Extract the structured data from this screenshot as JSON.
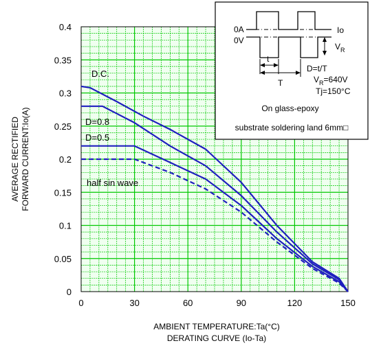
{
  "chart_data": {
    "type": "line",
    "title": "DERATING  CURVE (Io-Ta)",
    "xlabel": "AMBIENT TEMPERATURE:Ta(°C)",
    "ylabel_line1": "AVERAGE RECTIFIED",
    "ylabel_line2": "FORWARD CURRENT:Io(A)",
    "xlim": [
      0,
      150
    ],
    "ylim": [
      0,
      0.4
    ],
    "xticks": [
      "0",
      "30",
      "60",
      "90",
      "120",
      "150"
    ],
    "yticks": [
      "0",
      "0.05",
      "0.1",
      "0.15",
      "0.2",
      "0.25",
      "0.3",
      "0.35",
      "0.4"
    ],
    "grid": true,
    "series": [
      {
        "name": "D.C.",
        "style": "solid",
        "color": "#1f1fbf",
        "x": [
          0,
          5,
          20,
          35,
          50,
          70,
          90,
          110,
          130,
          145,
          150
        ],
        "y": [
          0.31,
          0.308,
          0.287,
          0.265,
          0.245,
          0.215,
          0.165,
          0.1,
          0.045,
          0.02,
          0
        ]
      },
      {
        "name": "D=0.8",
        "style": "solid",
        "color": "#1f1fbf",
        "x": [
          0,
          12,
          30,
          50,
          70,
          90,
          110,
          130,
          145,
          150
        ],
        "y": [
          0.28,
          0.28,
          0.255,
          0.22,
          0.19,
          0.145,
          0.09,
          0.042,
          0.018,
          0
        ]
      },
      {
        "name": "D=0.5",
        "style": "solid",
        "color": "#1f1fbf",
        "x": [
          0,
          30,
          50,
          70,
          90,
          110,
          130,
          145,
          150
        ],
        "y": [
          0.22,
          0.22,
          0.195,
          0.17,
          0.13,
          0.08,
          0.038,
          0.015,
          0
        ]
      },
      {
        "name": "half sin wave",
        "style": "dashed",
        "color": "#1f1fbf",
        "x": [
          0,
          30,
          50,
          70,
          90,
          110,
          130,
          145,
          150
        ],
        "y": [
          0.2,
          0.2,
          0.18,
          0.155,
          0.12,
          0.075,
          0.035,
          0.013,
          0
        ]
      }
    ],
    "labels": {
      "dc": "D.C.",
      "d08": "D=0.8",
      "d05": "D=0.5",
      "half": "half sin wave"
    },
    "inset": {
      "zero_a": "0A",
      "zero_v": "0V",
      "io": "Io",
      "vr": "V",
      "vr_sub": "R",
      "t_small": "t",
      "t_big": "T",
      "duty": "D=t/T",
      "vr_val_prefix": "V",
      "vr_val_sub": "R",
      "vr_val_suffix": "=640V",
      "tj": "Tj=150°C",
      "line1": "On glass-epoxy",
      "line2": "substrate soldering land 6mm□"
    },
    "colors": {
      "grid": "#00c800",
      "plot_bg": "#f0fff0",
      "curve": "#1f1fbf"
    }
  }
}
